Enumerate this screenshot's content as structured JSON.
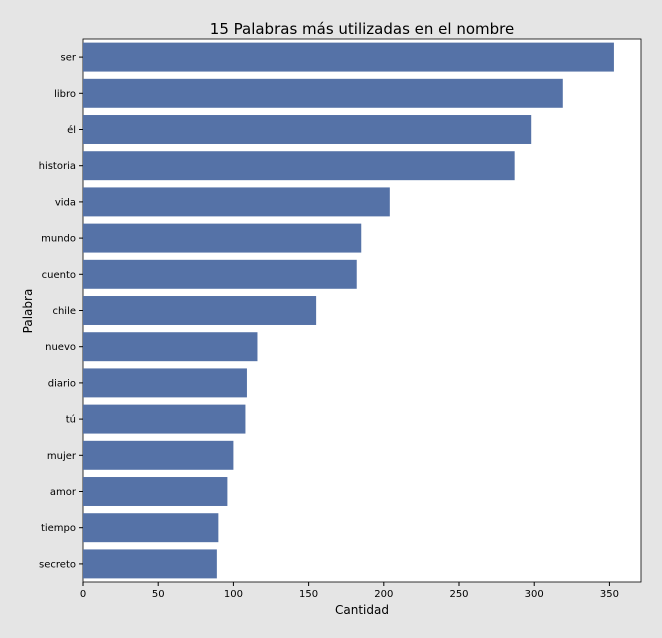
{
  "chart_data": {
    "type": "bar",
    "orientation": "horizontal",
    "title": "15 Palabras más utilizadas en el nombre",
    "xlabel": "Cantidad",
    "ylabel": "Palabra",
    "categories": [
      "ser",
      "libro",
      "él",
      "historia",
      "vida",
      "mundo",
      "cuento",
      "chile",
      "nuevo",
      "diario",
      "tú",
      "mujer",
      "amor",
      "tiempo",
      "secreto"
    ],
    "values": [
      353,
      319,
      298,
      287,
      204,
      185,
      182,
      155,
      116,
      109,
      108,
      100,
      96,
      90,
      89
    ],
    "xlim": [
      0,
      371
    ],
    "xticks": [
      0,
      50,
      100,
      150,
      200,
      250,
      300,
      350
    ],
    "bar_color": "#5572a7",
    "grid": false
  }
}
